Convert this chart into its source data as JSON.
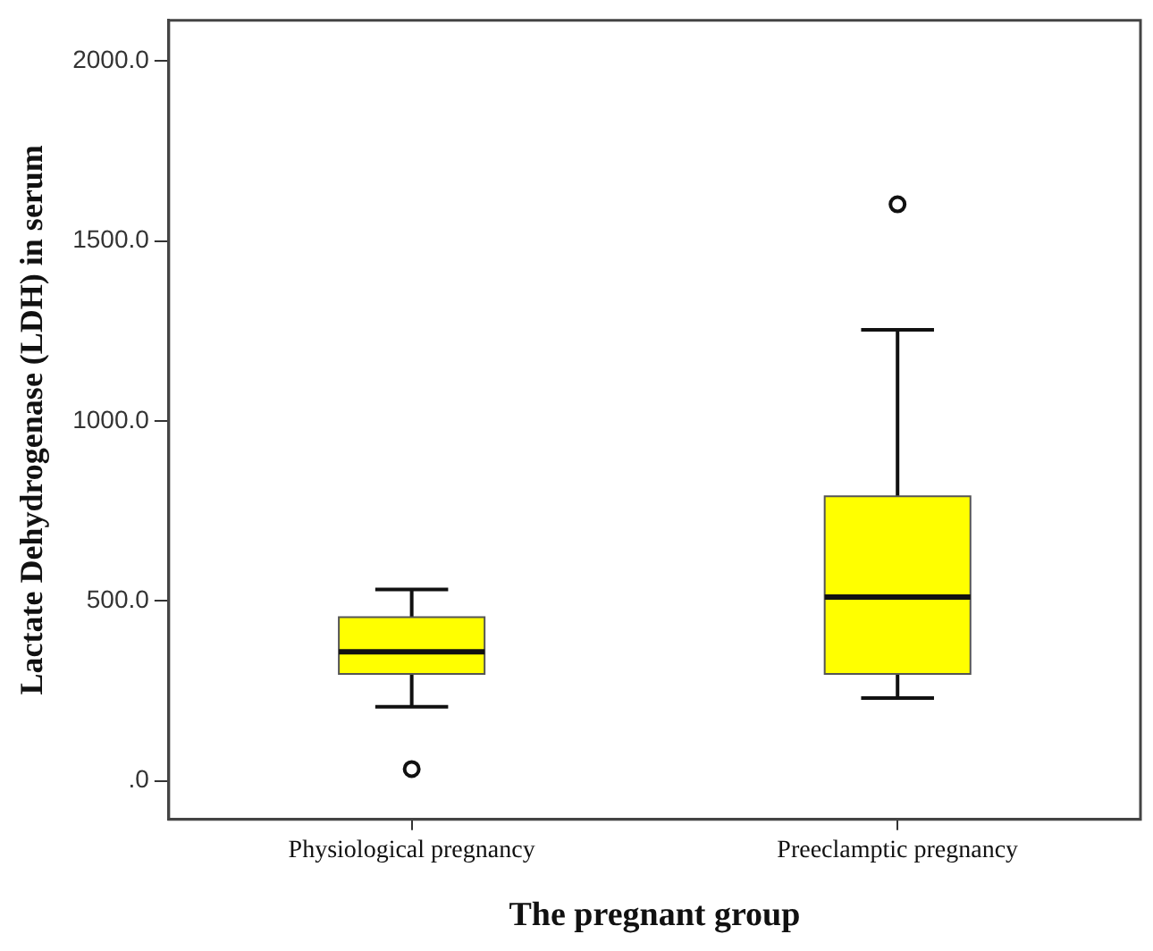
{
  "chart_data": {
    "type": "box",
    "categories": [
      "Physiological pregnancy",
      "Preeclamptic pregnancy"
    ],
    "boxes": [
      {
        "low": 206,
        "q1": 297,
        "median": 359,
        "q3": 455,
        "high": 532,
        "outliers": [
          33
        ]
      },
      {
        "low": 230,
        "q1": 297,
        "median": 511,
        "q3": 791,
        "high": 1253,
        "outliers": [
          1602
        ]
      }
    ],
    "color": "#ffff00",
    "ylim": [
      -107,
      2113
    ],
    "yticks": [
      {
        "value": 0,
        "label": ".0"
      },
      {
        "value": 500,
        "label": "500.0"
      },
      {
        "value": 1000,
        "label": "1000.0"
      },
      {
        "value": 1500,
        "label": "1500.0"
      },
      {
        "value": 2000,
        "label": "2000.0"
      }
    ],
    "ylabel": "Lactate Dehydrogenase (LDH) in serum",
    "xlabel": "The pregnant group"
  }
}
